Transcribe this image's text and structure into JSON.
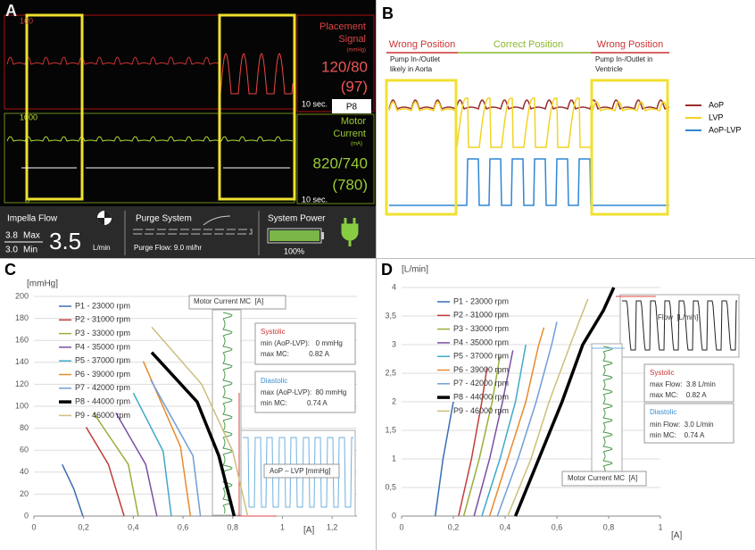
{
  "panel_labels": [
    "A",
    "B",
    "C",
    "D"
  ],
  "monitor": {
    "top_scale": "160",
    "placement_title_1": "Placement",
    "placement_title_2": "Signal",
    "placement_unit": "(mmHg)",
    "placement_value": "120/80",
    "placement_mean": "(97)",
    "time_scale_1": "10 sec.",
    "level": "P8",
    "mid_scale": "1000",
    "current_title_1": "Motor",
    "current_title_2": "Current",
    "current_unit": "(mA)",
    "current_value": "820/740",
    "current_mean": "(780)",
    "bottom_scale": "0",
    "time_scale_2": "10 sec.",
    "flow_title": "Impella Flow",
    "flow_max": "3.8",
    "flow_max_label": "Max",
    "flow_min": "3.0",
    "flow_min_label": "Min",
    "flow_value": "3.5",
    "flow_unit": "L/min",
    "purge_title": "Purge System",
    "purge_flow": "Purge Flow: 9.0  ml/hr",
    "power_title": "System Power",
    "power_value": "100%"
  },
  "chart_data": [
    {
      "type": "waveform",
      "annotations": [
        "Wrong Position",
        "Correct Position",
        "Wrong Position",
        "Pump In-/Outlet",
        "likely in Aorta",
        "Pump In-/Outlet in",
        "Ventricle"
      ],
      "series": [
        {
          "name": "AoP",
          "color": "#9b2d2d"
        },
        {
          "name": "LVP",
          "color": "#f2d422"
        },
        {
          "name": "AoP-LVP",
          "color": "#2f86d6"
        }
      ]
    },
    {
      "type": "line",
      "y_label": "[mmHg]",
      "x_label": "[A]",
      "xlim": [
        0,
        1.3
      ],
      "ylim": [
        0,
        200
      ],
      "xticks": [
        0,
        {
          "value": 0.2,
          "label": "0,2"
        },
        {
          "value": 0.4,
          "label": "0,4"
        },
        {
          "value": 0.6,
          "label": "0,6"
        },
        {
          "value": 0.8,
          "label": "0,8"
        },
        1,
        {
          "value": 1.2,
          "label": "1,2"
        }
      ],
      "yticks": [
        0,
        20,
        40,
        60,
        80,
        100,
        120,
        140,
        160,
        180,
        200
      ],
      "grid": true,
      "series": [
        {
          "name": "P1 - 23000 rpm",
          "color": "#3a6db5",
          "x": [
            0.114,
            0.16,
            0.197
          ],
          "values": [
            47,
            25,
            0
          ]
        },
        {
          "name": "P2 - 31000 rpm",
          "color": "#c23b3b",
          "x": [
            0.21,
            0.3,
            0.363
          ],
          "values": [
            81,
            47,
            0
          ]
        },
        {
          "name": "P3 - 33000 rpm",
          "color": "#9aae3a",
          "x": [
            0.24,
            0.38,
            0.42
          ],
          "values": [
            94,
            47,
            0
          ]
        },
        {
          "name": "P4 - 35000 rpm",
          "color": "#7b4fa3",
          "x": [
            0.33,
            0.45,
            0.495
          ],
          "values": [
            94,
            47,
            0
          ]
        },
        {
          "name": "P5 - 37000 rpm",
          "color": "#3fa9c9",
          "x": [
            0.4,
            0.52,
            0.553
          ],
          "values": [
            112,
            59,
            0
          ]
        },
        {
          "name": "P6 - 39000 rpm",
          "color": "#e88a2e",
          "x": [
            0.44,
            0.59,
            0.63
          ],
          "values": [
            141,
            63,
            0
          ]
        },
        {
          "name": "P7 - 42000 rpm",
          "color": "#6f9ed8",
          "x": [
            0.47,
            0.64,
            0.67
          ],
          "values": [
            124,
            55,
            0
          ]
        },
        {
          "name": "P8 - 44000 rpm",
          "color": "#000000",
          "bold": true,
          "x": [
            0.474,
            0.657,
            0.744,
            0.806
          ],
          "values": [
            149,
            104,
            55,
            0
          ]
        },
        {
          "name": "P9 - 46000 rpm",
          "color": "#cdbf7a",
          "x": [
            0.474,
            0.675,
            0.8,
            0.86
          ],
          "values": [
            172,
            120,
            59,
            0
          ]
        }
      ],
      "annotations": [
        "Motor Current MC  [A]",
        "Systolic",
        "min (AoP-LVP):   0 mmHg",
        "max MC:          0.82 A",
        "Diastolic",
        "max (AoP-LVP):  80 mmHg",
        "min MC:          0.74 A",
        "AoP – LVP [mmHg]"
      ]
    },
    {
      "type": "line",
      "y_label": "[L/min]",
      "x_label": "[A]",
      "xlim": [
        0,
        1
      ],
      "ylim": [
        0,
        4
      ],
      "xticks": [
        0,
        {
          "value": 0.2,
          "label": "0,2"
        },
        {
          "value": 0.4,
          "label": "0,4"
        },
        {
          "value": 0.6,
          "label": "0,6"
        },
        {
          "value": 0.8,
          "label": "0,8"
        },
        1
      ],
      "yticks": [
        0,
        {
          "value": 0.5,
          "label": "0,5"
        },
        1,
        {
          "value": 1.5,
          "label": "1,5"
        },
        2,
        {
          "value": 2.5,
          "label": "2,5"
        },
        3,
        {
          "value": 3.5,
          "label": "3,5"
        },
        4
      ],
      "grid": true,
      "series": [
        {
          "name": "P1 - 23000 rpm",
          "color": "#3a6db5",
          "x": [
            0.13,
            0.16,
            0.2
          ],
          "values": [
            0,
            1,
            2
          ]
        },
        {
          "name": "P2 - 31000 rpm",
          "color": "#c23b3b",
          "x": [
            0.22,
            0.27,
            0.31,
            0.33
          ],
          "values": [
            0,
            1,
            2,
            2.6
          ]
        },
        {
          "name": "P3 - 33000 rpm",
          "color": "#9aae3a",
          "x": [
            0.24,
            0.3,
            0.35,
            0.38
          ],
          "values": [
            0,
            1,
            2,
            2.8
          ]
        },
        {
          "name": "P4 - 35000 rpm",
          "color": "#7b4fa3",
          "x": [
            0.28,
            0.34,
            0.39,
            0.43
          ],
          "values": [
            0,
            1,
            2,
            2.9
          ]
        },
        {
          "name": "P5 - 37000 rpm",
          "color": "#3fa9c9",
          "x": [
            0.31,
            0.38,
            0.44,
            0.48
          ],
          "values": [
            0,
            1,
            2,
            3
          ]
        },
        {
          "name": "P6 - 39000 rpm",
          "color": "#e88a2e",
          "x": [
            0.34,
            0.41,
            0.48,
            0.53,
            0.55
          ],
          "values": [
            0,
            1,
            2,
            3,
            3.3
          ]
        },
        {
          "name": "P7 - 42000 rpm",
          "color": "#6f9ed8",
          "x": [
            0.37,
            0.45,
            0.52,
            0.58,
            0.6
          ],
          "values": [
            0,
            1,
            2,
            3,
            3.4
          ]
        },
        {
          "name": "P8 - 44000 rpm",
          "color": "#000000",
          "bold": true,
          "x": [
            0.44,
            0.53,
            0.62,
            0.7,
            0.78,
            0.82
          ],
          "values": [
            0,
            1,
            2,
            3,
            3.6,
            4
          ]
        },
        {
          "name": "P9 - 46000 rpm",
          "color": "#cdbf7a",
          "x": [
            0.41,
            0.5,
            0.57,
            0.66,
            0.72
          ],
          "values": [
            0,
            1,
            2,
            3.1,
            3.8
          ]
        }
      ],
      "annotations": [
        "Flow  [L/min]",
        "Systolic",
        "max Flow:  3.8 L/min",
        "max MC:    0.82 A",
        "Diastolic",
        "min Flow:  3.0 L/min",
        "min MC:    0.74 A",
        "Motor Current MC  [A]"
      ]
    }
  ]
}
